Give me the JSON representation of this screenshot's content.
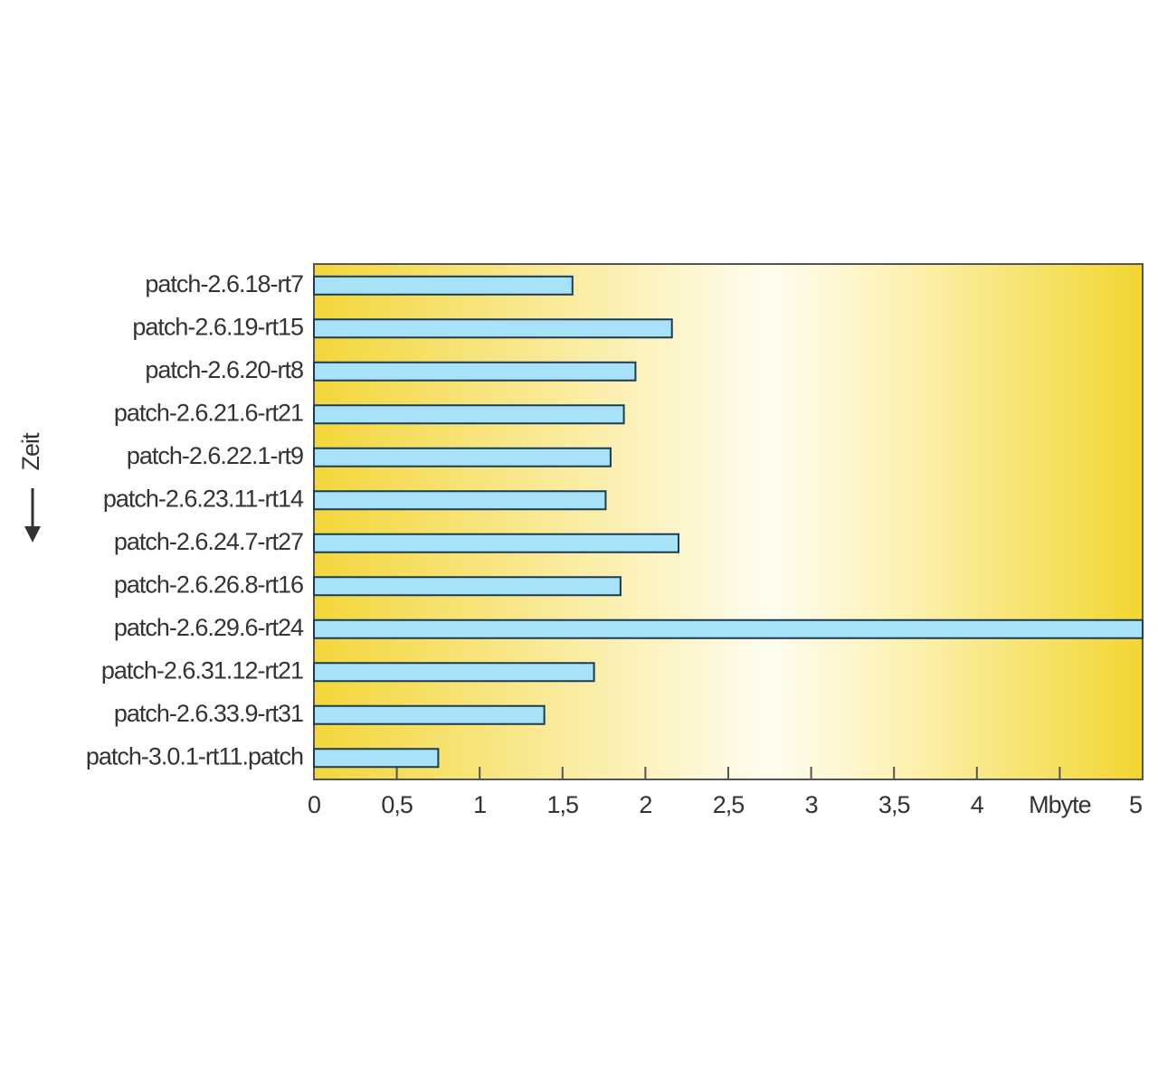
{
  "chart_data": {
    "type": "bar",
    "orientation": "horizontal",
    "y_label": "Zeit",
    "categories": [
      "patch-2.6.18-rt7",
      "patch-2.6.19-rt15",
      "patch-2.6.20-rt8",
      "patch-2.6.21.6-rt21",
      "patch-2.6.22.1-rt9",
      "patch-2.6.23.11-rt14",
      "patch-2.6.24.7-rt27",
      "patch-2.6.26.8-rt16",
      "patch-2.6.29.6-rt24",
      "patch-2.6.31.12-rt21",
      "patch-2.6.33.9-rt31",
      "patch-3.0.1-rt11.patch"
    ],
    "values": [
      1.56,
      2.16,
      1.94,
      1.87,
      1.79,
      1.76,
      2.2,
      1.85,
      5,
      1.69,
      1.39,
      0.75
    ],
    "color": "#a8e2f8",
    "xlim": [
      0,
      5
    ],
    "xticks": [
      0,
      {
        "value": 0.5,
        "label": "0,5"
      },
      1,
      {
        "value": 1.5,
        "label": "1,5"
      },
      2,
      {
        "value": 2.5,
        "label": "2,5"
      },
      3,
      {
        "value": 3.5,
        "label": "3,5"
      },
      4,
      {
        "value": 4.5,
        "label": "Mbyte"
      },
      5
    ]
  }
}
